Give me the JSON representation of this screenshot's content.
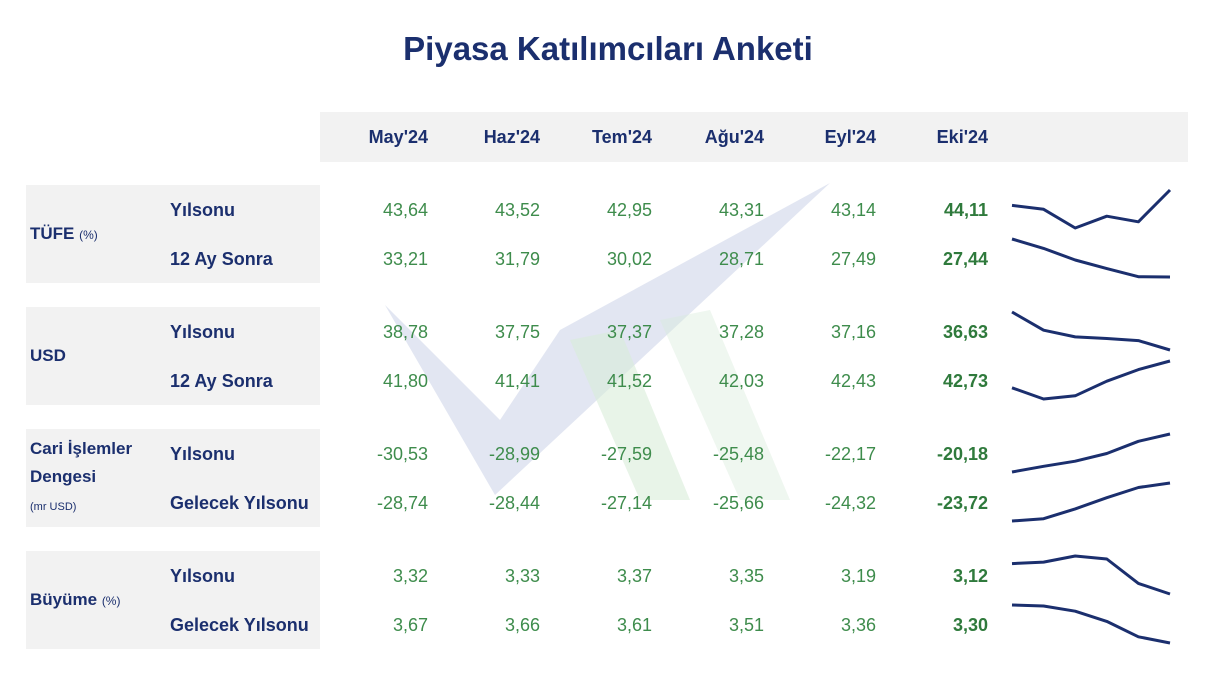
{
  "title": "Piyasa Katılımcıları Anketi",
  "columns": [
    "May'24",
    "Haz'24",
    "Tem'24",
    "Ağu'24",
    "Eyl'24",
    "Eki'24"
  ],
  "groups": [
    {
      "label": "TÜFE",
      "unit": "(%)",
      "rows": [
        {
          "name": "Yılsonu",
          "values": [
            43.64,
            43.52,
            42.95,
            43.31,
            43.14,
            44.11
          ],
          "value_labels": [
            "43,64",
            "43,52",
            "42,95",
            "43,31",
            "43,14",
            "44,11"
          ]
        },
        {
          "name": "12 Ay Sonra",
          "values": [
            33.21,
            31.79,
            30.02,
            28.71,
            27.49,
            27.44
          ],
          "value_labels": [
            "33,21",
            "31,79",
            "30,02",
            "28,71",
            "27,49",
            "27,44"
          ]
        }
      ]
    },
    {
      "label": "USD",
      "rows": [
        {
          "name": "Yılsonu",
          "values": [
            38.78,
            37.75,
            37.37,
            37.28,
            37.16,
            36.63
          ],
          "value_labels": [
            "38,78",
            "37,75",
            "37,37",
            "37,28",
            "37,16",
            "36,63"
          ]
        },
        {
          "name": "12 Ay Sonra",
          "values": [
            41.8,
            41.41,
            41.52,
            42.03,
            42.43,
            42.73
          ],
          "value_labels": [
            "41,80",
            "41,41",
            "41,52",
            "42,03",
            "42,43",
            "42,73"
          ]
        }
      ]
    },
    {
      "label": "Cari İşlemler Dengesi",
      "unit": "(mr USD)",
      "rows": [
        {
          "name": "Yılsonu",
          "values": [
            -30.53,
            -28.99,
            -27.59,
            -25.48,
            -22.17,
            -20.18
          ],
          "value_labels": [
            "-30,53",
            "-28,99",
            "-27,59",
            "-25,48",
            "-22,17",
            "-20,18"
          ]
        },
        {
          "name": "Gelecek Yılsonu",
          "values": [
            -28.74,
            -28.44,
            -27.14,
            -25.66,
            -24.32,
            -23.72
          ],
          "value_labels": [
            "-28,74",
            "-28,44",
            "-27,14",
            "-25,66",
            "-24,32",
            "-23,72"
          ]
        }
      ]
    },
    {
      "label": "Büyüme",
      "unit": "(%)",
      "rows": [
        {
          "name": "Yılsonu",
          "values": [
            3.32,
            3.33,
            3.37,
            3.35,
            3.19,
            3.12
          ],
          "value_labels": [
            "3,32",
            "3,33",
            "3,37",
            "3,35",
            "3,19",
            "3,12"
          ]
        },
        {
          "name": "Gelecek Yılsonu",
          "values": [
            3.67,
            3.66,
            3.61,
            3.51,
            3.36,
            3.3
          ],
          "value_labels": [
            "3,67",
            "3,66",
            "3,61",
            "3,51",
            "3,36",
            "3,30"
          ]
        }
      ]
    }
  ]
}
